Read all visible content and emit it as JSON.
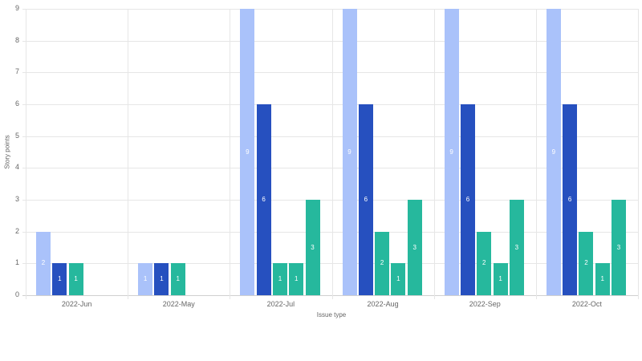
{
  "chart_data": {
    "type": "bar",
    "title": "",
    "xlabel": "Issue type",
    "ylabel": "Story points",
    "ylim": [
      0,
      9
    ],
    "yticks": [
      0,
      1,
      2,
      3,
      4,
      5,
      6,
      7,
      8,
      9
    ],
    "grid": true,
    "legend": "none",
    "colors": [
      "#aac2fa",
      "#2650bf",
      "#26b89d",
      "#26b89d",
      "#26b89d"
    ],
    "categories": [
      "2022-Jun",
      "2022-May",
      "2022-Jul",
      "2022-Aug",
      "2022-Sep",
      "2022-Oct"
    ],
    "groups": [
      {
        "category": "2022-Jun",
        "bars": [
          {
            "value": 2,
            "color": "#aac2fa"
          },
          {
            "value": 1,
            "color": "#2650bf"
          },
          {
            "value": 1,
            "color": "#26b89d"
          }
        ]
      },
      {
        "category": "2022-May",
        "bars": [
          {
            "value": 1,
            "color": "#aac2fa"
          },
          {
            "value": 1,
            "color": "#2650bf"
          },
          {
            "value": 1,
            "color": "#26b89d"
          }
        ]
      },
      {
        "category": "2022-Jul",
        "bars": [
          {
            "value": 9,
            "color": "#aac2fa"
          },
          {
            "value": 6,
            "color": "#2650bf"
          },
          {
            "value": 1,
            "color": "#26b89d"
          },
          {
            "value": 1,
            "color": "#26b89d"
          },
          {
            "value": 3,
            "color": "#26b89d"
          }
        ]
      },
      {
        "category": "2022-Aug",
        "bars": [
          {
            "value": 9,
            "color": "#aac2fa"
          },
          {
            "value": 6,
            "color": "#2650bf"
          },
          {
            "value": 2,
            "color": "#26b89d"
          },
          {
            "value": 1,
            "color": "#26b89d"
          },
          {
            "value": 3,
            "color": "#26b89d"
          }
        ]
      },
      {
        "category": "2022-Sep",
        "bars": [
          {
            "value": 9,
            "color": "#aac2fa"
          },
          {
            "value": 6,
            "color": "#2650bf"
          },
          {
            "value": 2,
            "color": "#26b89d"
          },
          {
            "value": 1,
            "color": "#26b89d"
          },
          {
            "value": 3,
            "color": "#26b89d"
          }
        ]
      },
      {
        "category": "2022-Oct",
        "bars": [
          {
            "value": 9,
            "color": "#aac2fa"
          },
          {
            "value": 6,
            "color": "#2650bf"
          },
          {
            "value": 2,
            "color": "#26b89d"
          },
          {
            "value": 1,
            "color": "#26b89d"
          },
          {
            "value": 3,
            "color": "#26b89d"
          }
        ]
      }
    ]
  }
}
